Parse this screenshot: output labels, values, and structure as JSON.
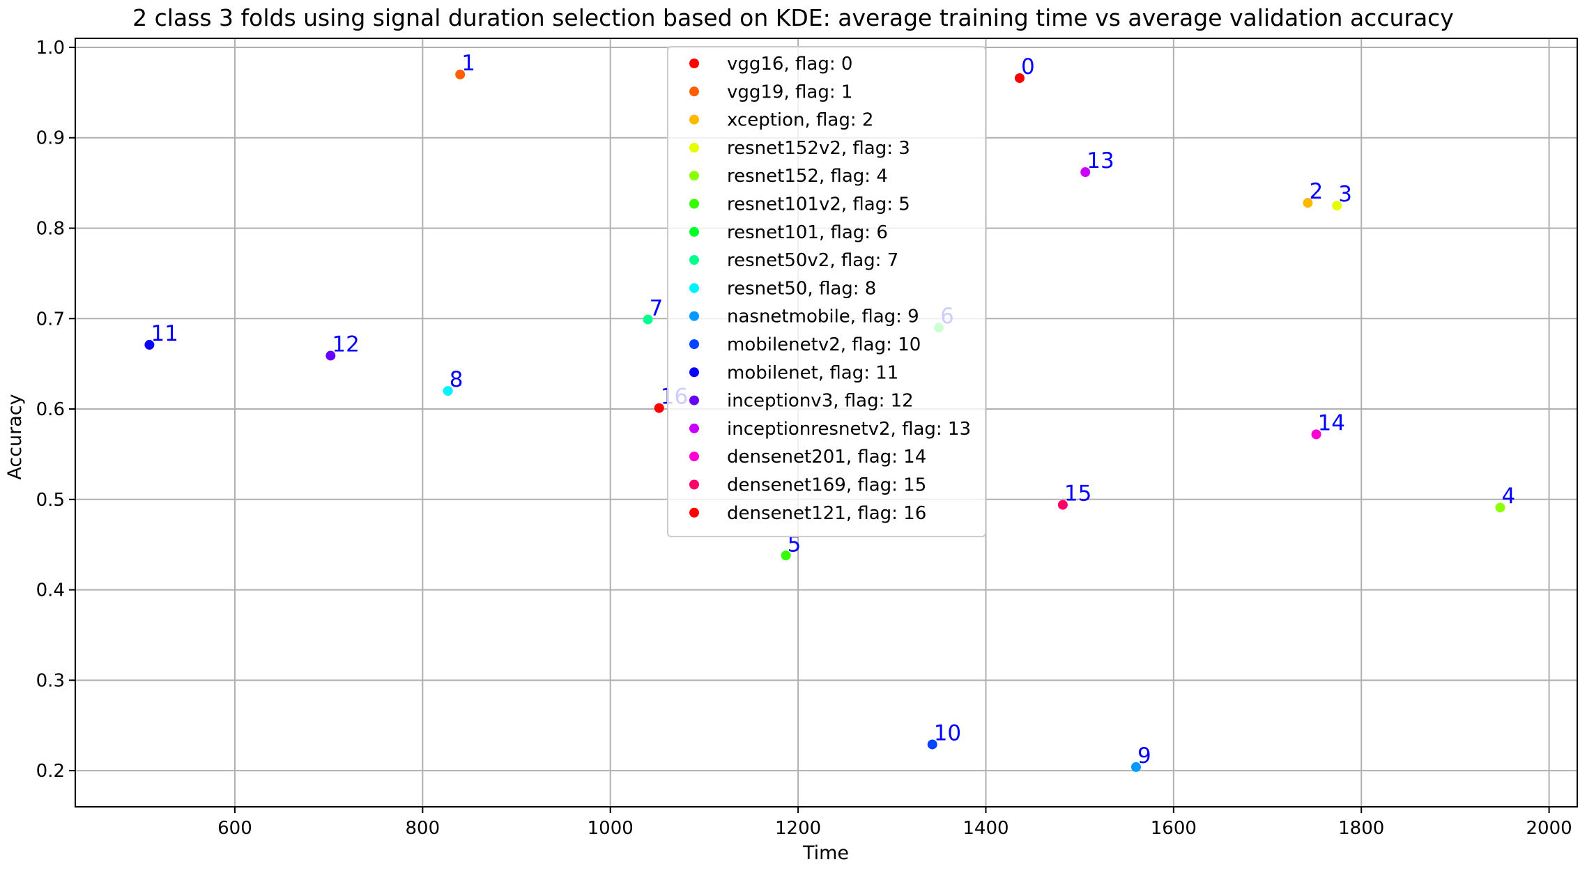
{
  "chart_data": {
    "type": "scatter",
    "title": "2 class 3 folds using signal duration selection based on KDE: average training time vs average validation accuracy",
    "xlabel": "Time",
    "ylabel": "Accuracy",
    "xlim": [
      430,
      2030
    ],
    "ylim": [
      0.16,
      1.01
    ],
    "xticks": [
      600,
      800,
      1000,
      1200,
      1400,
      1600,
      1800,
      2000
    ],
    "yticks": [
      0.2,
      0.3,
      0.4,
      0.5,
      0.6,
      0.7,
      0.8,
      0.9,
      1.0
    ],
    "xtick_labels": [
      "600",
      "800",
      "1000",
      "1200",
      "1400",
      "1600",
      "1800",
      "2000"
    ],
    "ytick_labels": [
      "0.2",
      "0.3",
      "0.4",
      "0.5",
      "0.6",
      "0.7",
      "0.8",
      "0.9",
      "1.0"
    ],
    "grid": true,
    "legend_position": "upper center",
    "point_label_color": "#0000ff",
    "series": [
      {
        "name": "vgg16, flag: 0",
        "label": "0",
        "color": "#ff0000",
        "x": 1436,
        "y": 0.966
      },
      {
        "name": "vgg19, flag: 1",
        "label": "1",
        "color": "#ff5e00",
        "x": 840,
        "y": 0.97
      },
      {
        "name": "xception, flag: 2",
        "label": "2",
        "color": "#ffb800",
        "x": 1743,
        "y": 0.828
      },
      {
        "name": "resnet152v2, flag: 3",
        "label": "3",
        "color": "#e6ff00",
        "x": 1774,
        "y": 0.825
      },
      {
        "name": "resnet152, flag: 4",
        "label": "4",
        "color": "#8cff00",
        "x": 1948,
        "y": 0.491
      },
      {
        "name": "resnet101v2, flag: 5",
        "label": "5",
        "color": "#33ff00",
        "x": 1187,
        "y": 0.438
      },
      {
        "name": "resnet101, flag: 6",
        "label": "6",
        "color": "#00ff26",
        "x": 1350,
        "y": 0.69
      },
      {
        "name": "resnet50v2, flag: 7",
        "label": "7",
        "color": "#00ff8c",
        "x": 1040,
        "y": 0.699
      },
      {
        "name": "resnet50, flag: 8",
        "label": "8",
        "color": "#00f2ff",
        "x": 827,
        "y": 0.62
      },
      {
        "name": "nasnetmobile, flag: 9",
        "label": "9",
        "color": "#0099ff",
        "x": 1560,
        "y": 0.204
      },
      {
        "name": "mobilenetv2, flag: 10",
        "label": "10",
        "color": "#0044ff",
        "x": 1343,
        "y": 0.229
      },
      {
        "name": "mobilenet, flag: 11",
        "label": "11",
        "color": "#0a00ff",
        "x": 509,
        "y": 0.671
      },
      {
        "name": "inceptionv3, flag: 12",
        "label": "12",
        "color": "#6600ff",
        "x": 702,
        "y": 0.659
      },
      {
        "name": "inceptionresnetv2, flag: 13",
        "label": "13",
        "color": "#cc00ff",
        "x": 1506,
        "y": 0.862
      },
      {
        "name": "densenet201, flag: 14",
        "label": "14",
        "color": "#ff00d4",
        "x": 1752,
        "y": 0.572
      },
      {
        "name": "densenet169, flag: 15",
        "label": "15",
        "color": "#ff0066",
        "x": 1482,
        "y": 0.494
      },
      {
        "name": "densenet121, flag: 16",
        "label": "16",
        "color": "#ff0000",
        "x": 1052,
        "y": 0.601
      }
    ]
  }
}
